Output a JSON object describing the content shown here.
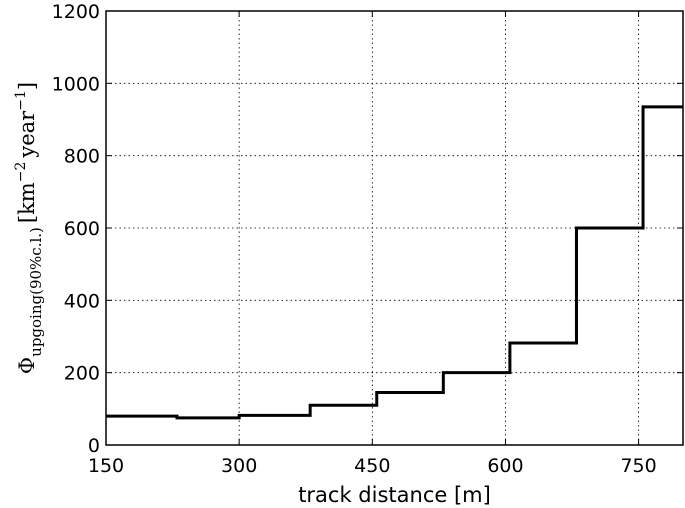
{
  "chart_data": {
    "type": "line",
    "drawstyle": "step",
    "title": "",
    "xlabel": "track distance [m]",
    "ylabel": {
      "symbol": "Φ",
      "subscript": "upgoing(90%c.l.)",
      "bracket_open": "[km",
      "sup1": "−2",
      "middle": "year",
      "sup2": "−1",
      "bracket_close": "]"
    },
    "xlim": [
      150,
      800
    ],
    "ylim": [
      0,
      1200
    ],
    "xticks": [
      150,
      300,
      450,
      600,
      750
    ],
    "yticks": [
      0,
      200,
      400,
      600,
      800,
      1000,
      1200
    ],
    "grid": true,
    "series": [
      {
        "color": "#000000",
        "steps": [
          {
            "x_start": 150,
            "x_end": 230,
            "y": 80
          },
          {
            "x_start": 230,
            "x_end": 300,
            "y": 75
          },
          {
            "x_start": 300,
            "x_end": 380,
            "y": 82
          },
          {
            "x_start": 380,
            "x_end": 455,
            "y": 110
          },
          {
            "x_start": 455,
            "x_end": 530,
            "y": 145
          },
          {
            "x_start": 530,
            "x_end": 605,
            "y": 200
          },
          {
            "x_start": 605,
            "x_end": 680,
            "y": 282
          },
          {
            "x_start": 680,
            "x_end": 755,
            "y": 600
          },
          {
            "x_start": 755,
            "x_end": 800,
            "y": 935
          }
        ]
      }
    ]
  }
}
